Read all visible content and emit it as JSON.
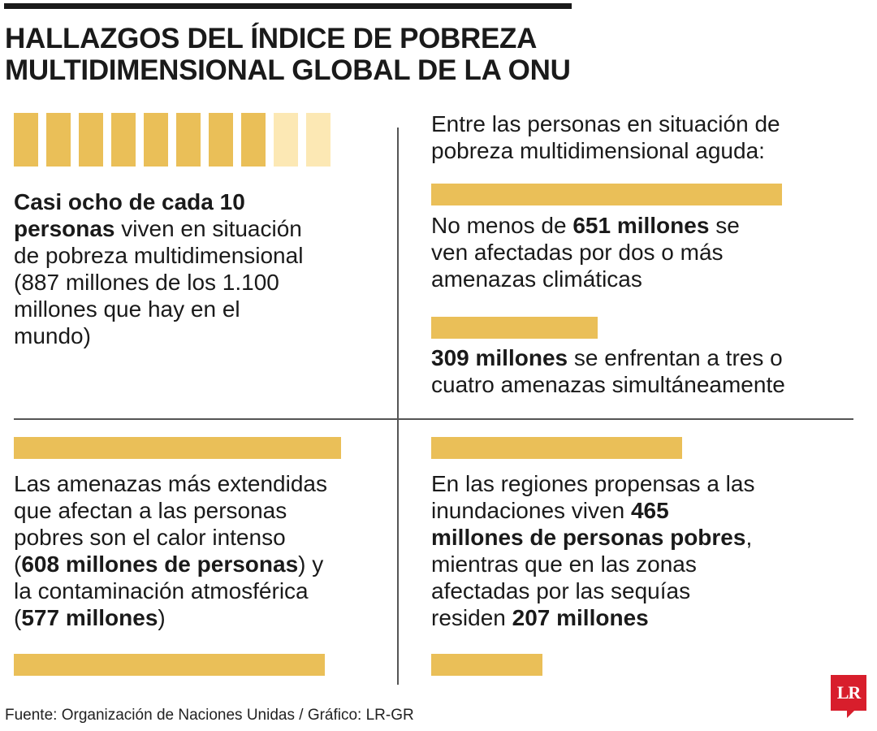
{
  "title": {
    "line1": "HALLAZGOS DEL ÍNDICE DE POBREZA",
    "line2": "MULTIDIMENSIONAL GLOBAL DE LA ONU"
  },
  "colors": {
    "bar": "#eabf58",
    "bar_light": "#fce8b4",
    "text": "#1a1a1a",
    "rule": "#555555",
    "logo": "#d81e2c"
  },
  "chart_data": [
    {
      "type": "waffle",
      "total": 10,
      "filled": 8,
      "description_lines": [
        [
          {
            "t": "Casi ocho de cada 10",
            "b": true
          }
        ],
        [
          {
            "t": "personas",
            "b": true
          },
          {
            "t": " viven en situación",
            "b": false
          }
        ],
        [
          {
            "t": "de pobreza multidimensional",
            "b": false
          }
        ],
        [
          {
            "t": "(887 millones de los 1.100",
            "b": false
          }
        ],
        [
          {
            "t": "millones que hay en el",
            "b": false
          }
        ],
        [
          {
            "t": "mundo)",
            "b": false
          }
        ]
      ]
    },
    {
      "type": "bar",
      "unit": "millones",
      "intro_lines": [
        [
          {
            "t": "Entre las personas en situación de",
            "b": false
          }
        ],
        [
          {
            "t": "pobreza multidimensional aguda:",
            "b": false
          }
        ]
      ],
      "bars": [
        {
          "value": 651,
          "lines": [
            [
              {
                "t": "No menos de ",
                "b": false
              },
              {
                "t": "651 millones",
                "b": true
              },
              {
                "t": " se",
                "b": false
              }
            ],
            [
              {
                "t": "ven afectadas por dos o más",
                "b": false
              }
            ],
            [
              {
                "t": "amenazas climáticas",
                "b": false
              }
            ]
          ]
        },
        {
          "value": 309,
          "lines": [
            [
              {
                "t": "309 millones",
                "b": true
              },
              {
                "t": " se enfrentan a tres o",
                "b": false
              }
            ],
            [
              {
                "t": "cuatro amenazas simultáneamente",
                "b": false
              }
            ]
          ]
        }
      ]
    },
    {
      "type": "bar",
      "unit": "millones",
      "bars": [
        {
          "value": 608
        },
        {
          "value": 577
        }
      ],
      "description_lines": [
        [
          {
            "t": "Las amenazas más extendidas",
            "b": false
          }
        ],
        [
          {
            "t": "que afectan a las personas",
            "b": false
          }
        ],
        [
          {
            "t": "pobres son el calor intenso",
            "b": false
          }
        ],
        [
          {
            "t": "(",
            "b": false
          },
          {
            "t": "608 millones de personas",
            "b": true
          },
          {
            "t": ") y",
            "b": false
          }
        ],
        [
          {
            "t": "la contaminación atmosférica",
            "b": false
          }
        ],
        [
          {
            "t": "(",
            "b": false
          },
          {
            "t": "577 millones",
            "b": true
          },
          {
            "t": ")",
            "b": false
          }
        ]
      ]
    },
    {
      "type": "bar",
      "unit": "millones",
      "bars": [
        {
          "value": 465
        },
        {
          "value": 207
        }
      ],
      "description_lines": [
        [
          {
            "t": "En las regiones propensas a las",
            "b": false
          }
        ],
        [
          {
            "t": "inundaciones viven ",
            "b": false
          },
          {
            "t": "465",
            "b": true
          }
        ],
        [
          {
            "t": "millones de personas pobres",
            "b": true
          },
          {
            "t": ",",
            "b": false
          }
        ],
        [
          {
            "t": "mientras que en las zonas",
            "b": false
          }
        ],
        [
          {
            "t": "afectadas por las sequías",
            "b": false
          }
        ],
        [
          {
            "t": "residen ",
            "b": false
          },
          {
            "t": "207 millones",
            "b": true
          }
        ]
      ]
    }
  ],
  "footer": {
    "source": "Fuente: Organización de Naciones Unidas / Gráfico: LR-GR",
    "logo_text": "LR"
  }
}
